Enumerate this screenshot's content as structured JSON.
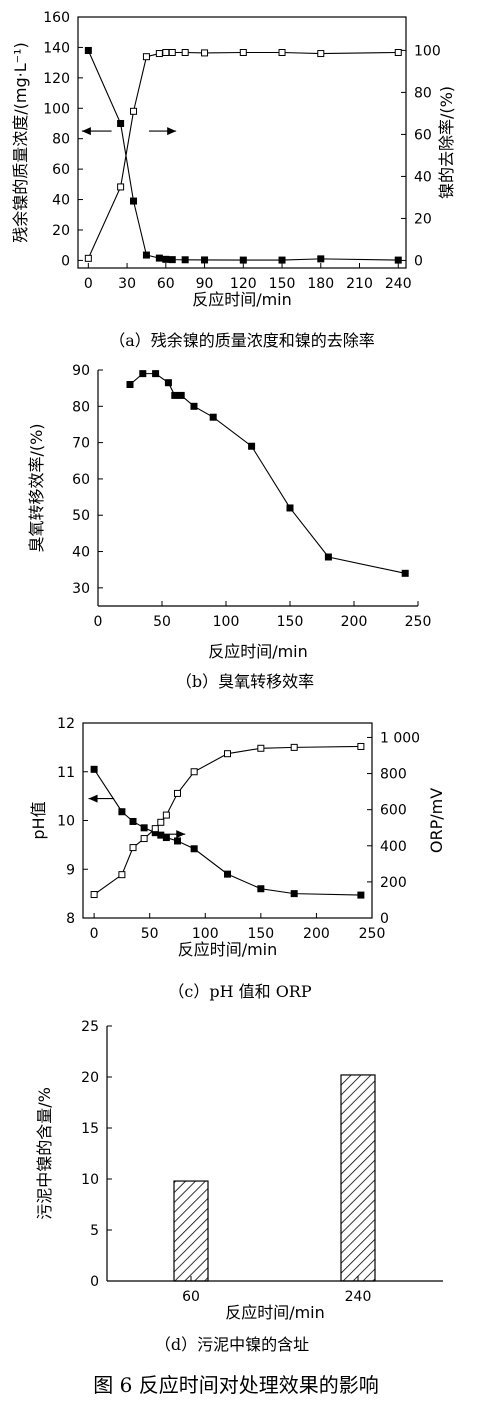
{
  "figure_caption": "图 6   反应时间对处理效果的影响",
  "charts": {
    "a": {
      "caption": "（a）残余镍的质量浓度和镍的去除率",
      "xlabel": "反应时间/min",
      "ylabel": "残余镍的质量浓度/(mg·L⁻¹)",
      "y2label": "镍的去除率/(%)"
    },
    "b": {
      "caption": "（b）臭氧转移效率",
      "xlabel": "反应时间/min",
      "ylabel": "臭氧转移效率/(%)"
    },
    "c": {
      "caption": "（c）pH 值和 ORP",
      "xlabel": "反应时间/min",
      "ylabel": "pH值",
      "y2label": "ORP/mV"
    },
    "d": {
      "caption": "（d）污泥中镍的含址",
      "xlabel": "反应时间/min",
      "ylabel": "污泥中镍的含量/%"
    }
  },
  "chart_data": [
    {
      "id": "a",
      "type": "line",
      "title": "",
      "xlabel": "反应时间/min",
      "ylabel": "残余镍的质量浓度/(mg·L⁻¹)",
      "y2label": "镍的去除率/(%)",
      "xlim": [
        -8,
        246
      ],
      "xticks": [
        0,
        30,
        60,
        90,
        120,
        150,
        180,
        210,
        240
      ],
      "ylim": [
        -5,
        160
      ],
      "yticks": [
        0,
        20,
        40,
        60,
        80,
        100,
        120,
        140,
        160
      ],
      "y2lim": [
        -3.6,
        115.9
      ],
      "y2ticks": [
        0,
        20,
        40,
        60,
        80,
        100
      ],
      "grid": false,
      "series": [
        {
          "axis": "left",
          "marker": "filled-square",
          "x": [
            0,
            25,
            35,
            45,
            55,
            60,
            65,
            75,
            90,
            120,
            150,
            180,
            240
          ],
          "y": [
            138,
            90,
            39,
            3.5,
            1.5,
            0.7,
            0.5,
            0.4,
            0.3,
            0.2,
            0.2,
            1.0,
            0.2
          ]
        },
        {
          "axis": "right",
          "marker": "open-square",
          "x": [
            0,
            25,
            35,
            45,
            55,
            60,
            65,
            75,
            90,
            120,
            150,
            180,
            240
          ],
          "y": [
            1,
            35,
            71,
            97,
            98.5,
            99,
            99,
            99,
            98.8,
            99,
            99,
            98.5,
            99
          ]
        }
      ],
      "annotations": [
        "arrow-left",
        "arrow-right"
      ]
    },
    {
      "id": "b",
      "type": "line",
      "title": "",
      "xlabel": "反应时间/min",
      "ylabel": "臭氧转移效率/(%)",
      "xlim": [
        0,
        250
      ],
      "xticks": [
        0,
        50,
        100,
        150,
        200,
        250
      ],
      "ylim": [
        25,
        90
      ],
      "yticks": [
        30,
        40,
        50,
        60,
        70,
        80,
        90
      ],
      "grid": false,
      "series": [
        {
          "marker": "filled-square",
          "x": [
            25,
            35,
            45,
            55,
            60,
            65,
            75,
            90,
            120,
            150,
            180,
            240
          ],
          "y": [
            86,
            89,
            89,
            86.5,
            83,
            83,
            80,
            77,
            69,
            52,
            38.5,
            34
          ]
        }
      ]
    },
    {
      "id": "c",
      "type": "line",
      "title": "",
      "xlabel": "反应时间/min",
      "ylabel": "pH值",
      "y2label": "ORP/mV",
      "xlim": [
        -10,
        250
      ],
      "xticks": [
        0,
        50,
        100,
        150,
        200,
        250
      ],
      "ylim": [
        8,
        12
      ],
      "yticks": [
        8,
        9,
        10,
        11,
        12
      ],
      "y2lim": [
        0,
        1080
      ],
      "y2ticks": [
        0,
        200,
        400,
        600,
        800,
        1000
      ],
      "y2ticklabels": [
        "0",
        "200",
        "400",
        "600",
        "800",
        "1 000"
      ],
      "grid": false,
      "series": [
        {
          "axis": "left",
          "marker": "filled-square",
          "x": [
            0,
            25,
            35,
            45,
            55,
            60,
            65,
            75,
            90,
            120,
            150,
            180,
            240
          ],
          "y": [
            11.05,
            10.18,
            9.98,
            9.85,
            9.75,
            9.7,
            9.65,
            9.58,
            9.42,
            8.9,
            8.6,
            8.5,
            8.47
          ]
        },
        {
          "axis": "right",
          "marker": "open-square",
          "x": [
            0,
            25,
            35,
            45,
            55,
            60,
            65,
            75,
            90,
            120,
            150,
            180,
            240
          ],
          "y": [
            130,
            240,
            390,
            440,
            495,
            530,
            570,
            690,
            810,
            910,
            940,
            945,
            950
          ]
        }
      ],
      "annotations": [
        "arrow-left",
        "arrow-right"
      ]
    },
    {
      "id": "d",
      "type": "bar",
      "title": "",
      "xlabel": "反应时间/min",
      "ylabel": "污泥中镍的含量/%",
      "categories": [
        "60",
        "240"
      ],
      "values": [
        9.8,
        20.2
      ],
      "ylim": [
        0,
        25
      ],
      "yticks": [
        0,
        5,
        10,
        15,
        20,
        25
      ],
      "fill": "hatched",
      "grid": false
    }
  ]
}
